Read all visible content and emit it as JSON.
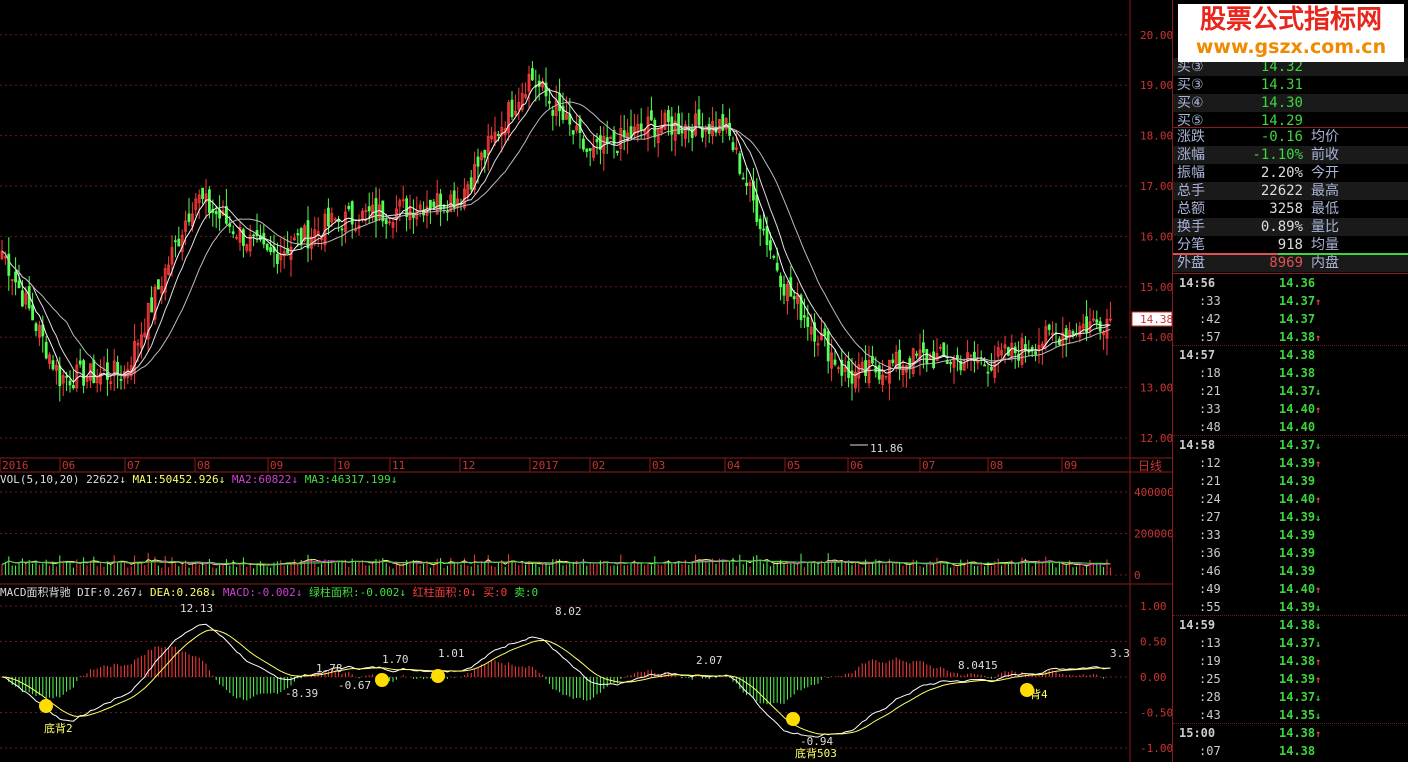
{
  "watermark": {
    "line1": "股票公式指标网",
    "line2": "www.gszx.com.cn"
  },
  "chart_data": {
    "type": "candlestick",
    "categories": [
      "2016",
      "06",
      "07",
      "08",
      "09",
      "10",
      "11",
      "12",
      "2017",
      "02",
      "03",
      "04",
      "05",
      "06",
      "07",
      "08",
      "09"
    ],
    "approx_close_at_month_start": [
      15.8,
      13.2,
      13.3,
      16.8,
      15.6,
      16.3,
      16.5,
      16.8,
      19.2,
      17.6,
      18.2,
      18.2,
      15.0,
      13.2,
      13.6,
      13.5,
      14.1
    ],
    "last_price": 14.38,
    "price_axis": {
      "ticks": [
        "20.00",
        "19.00",
        "18.00",
        "17.00",
        "16.00",
        "15.00",
        "14.00",
        "13.00",
        "12.00"
      ],
      "ylim": [
        11.8,
        20.6
      ]
    },
    "annotations": [
      "11.86"
    ],
    "period_label": "日线",
    "volume": {
      "header": "VOL(5,10,20)",
      "value": "22622",
      "ma1": "MA1:50452.926",
      "ma2": "MA2:60822",
      "ma3": "MA3:46317.199",
      "ticks": [
        "400000",
        "200000",
        "0"
      ]
    },
    "macd": {
      "title": "MACD面积背驰",
      "dif": "DIF:0.267",
      "dea": "DEA:0.268",
      "macd": "MACD:-0.002",
      "green_area": "绿柱面积:-0.002",
      "red_area": "红柱面积:0",
      "buy": "买:0",
      "sell": "卖:0",
      "ticks": [
        "1.00",
        "0.50",
        "0.00",
        "-0.50",
        "-1.00"
      ],
      "labels": [
        "12.13",
        "-8.39",
        "1.78",
        "-0.67",
        "1.70",
        "1.01",
        "8.02",
        "2.07",
        "8.0415",
        "-0.94",
        "3.3",
        "底背2",
        "底背503",
        "背4"
      ]
    },
    "colors": {
      "up": "#ff3c3c",
      "down": "#54ff54",
      "ma": "#ffffff",
      "grid": "#8b1a1a"
    }
  },
  "quote": {
    "bids": [
      {
        "label": "买③",
        "price": "14.32"
      },
      {
        "label": "买③",
        "price": "14.31"
      },
      {
        "label": "买④",
        "price": "14.30"
      },
      {
        "label": "买⑤",
        "price": "14.29"
      }
    ],
    "stats": [
      {
        "l1": "涨跌",
        "v1": "-0.16",
        "l2": "均价",
        "c": "#3dd63d"
      },
      {
        "l1": "涨幅",
        "v1": "-1.10%",
        "l2": "前收",
        "c": "#3dd63d"
      },
      {
        "l1": "振幅",
        "v1": "2.20%",
        "l2": "今开",
        "c": "#ddd"
      },
      {
        "l1": "总手",
        "v1": "22622",
        "l2": "最高",
        "c": "#ddd"
      },
      {
        "l1": "总额",
        "v1": "3258",
        "l2": "最低",
        "c": "#ddd"
      },
      {
        "l1": "换手",
        "v1": "0.89%",
        "l2": "量比",
        "c": "#ddd"
      },
      {
        "l1": "分笔",
        "v1": "918",
        "l2": "均量",
        "c": "#ddd"
      },
      {
        "l1": "外盘",
        "v1": "8969",
        "l2": "内盘",
        "c": "#e05050"
      }
    ],
    "ticks": [
      {
        "t": "14:56",
        "p": "14.36",
        "a": ""
      },
      {
        "t": ":33",
        "p": "14.37",
        "a": "↑"
      },
      {
        "t": ":42",
        "p": "14.37",
        "a": ""
      },
      {
        "t": ":57",
        "p": "14.38",
        "a": "↑"
      },
      {
        "t": "14:57",
        "p": "14.38",
        "a": ""
      },
      {
        "t": ":18",
        "p": "14.38",
        "a": ""
      },
      {
        "t": ":21",
        "p": "14.37",
        "a": "↓"
      },
      {
        "t": ":33",
        "p": "14.40",
        "a": "↑"
      },
      {
        "t": ":48",
        "p": "14.40",
        "a": ""
      },
      {
        "t": "14:58",
        "p": "14.37",
        "a": "↓"
      },
      {
        "t": ":12",
        "p": "14.39",
        "a": "↑"
      },
      {
        "t": ":21",
        "p": "14.39",
        "a": ""
      },
      {
        "t": ":24",
        "p": "14.40",
        "a": "↑"
      },
      {
        "t": ":27",
        "p": "14.39",
        "a": "↓"
      },
      {
        "t": ":33",
        "p": "14.39",
        "a": ""
      },
      {
        "t": ":36",
        "p": "14.39",
        "a": ""
      },
      {
        "t": ":46",
        "p": "14.39",
        "a": ""
      },
      {
        "t": ":49",
        "p": "14.40",
        "a": "↑"
      },
      {
        "t": ":55",
        "p": "14.39",
        "a": "↓"
      },
      {
        "t": "14:59",
        "p": "14.38",
        "a": "↓"
      },
      {
        "t": ":13",
        "p": "14.37",
        "a": "↓"
      },
      {
        "t": ":19",
        "p": "14.38",
        "a": "↑"
      },
      {
        "t": ":25",
        "p": "14.39",
        "a": "↑"
      },
      {
        "t": ":28",
        "p": "14.37",
        "a": "↓"
      },
      {
        "t": ":43",
        "p": "14.35",
        "a": "↓"
      },
      {
        "t": "15:00",
        "p": "14.38",
        "a": "↑"
      },
      {
        "t": ":07",
        "p": "14.38",
        "a": ""
      }
    ]
  }
}
